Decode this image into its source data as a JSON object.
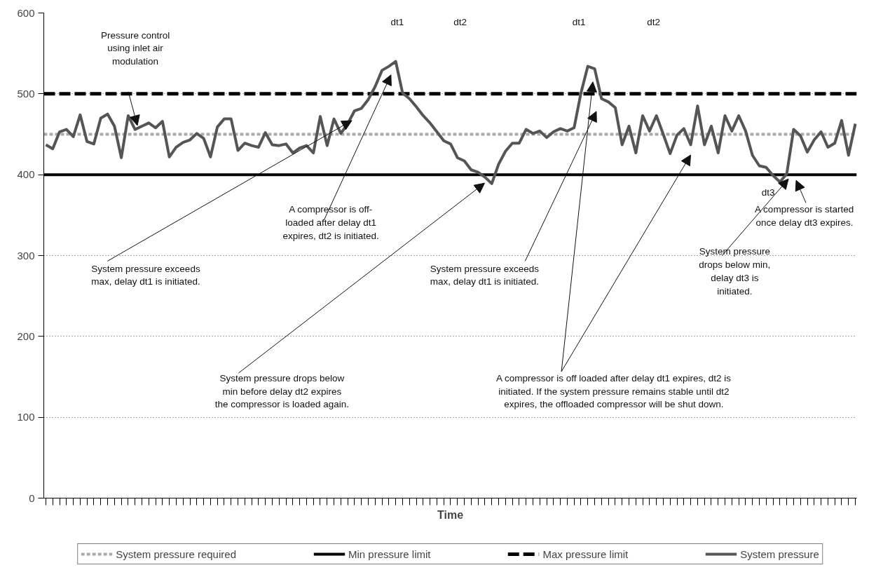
{
  "chart_data": {
    "type": "line",
    "xlabel": "Time",
    "categories": [
      null,
      null,
      null,
      null,
      null,
      null,
      null,
      null,
      null,
      null,
      null,
      null,
      null,
      null,
      null,
      null,
      null,
      null,
      null,
      null,
      null,
      null,
      null,
      null,
      null,
      null,
      null,
      null,
      null,
      null,
      null,
      null,
      null,
      null,
      null,
      null,
      null,
      null,
      null,
      null,
      null,
      null,
      null,
      null,
      null,
      null,
      null,
      null,
      null,
      null,
      null,
      null,
      null,
      null,
      null,
      null,
      null,
      null,
      null,
      null,
      null,
      null,
      null,
      null,
      null,
      null,
      null,
      null,
      null,
      null,
      null,
      null,
      null,
      null,
      null,
      null,
      null,
      null,
      null,
      null,
      null,
      null,
      null,
      null,
      null,
      null,
      null,
      null,
      null,
      null,
      null,
      null,
      null,
      null,
      null,
      null,
      null,
      null,
      null,
      null,
      null,
      null,
      null,
      null,
      null,
      null,
      null,
      null,
      null,
      null,
      null,
      null,
      null,
      null,
      null,
      null,
      null,
      null,
      null
    ],
    "series": [
      {
        "name": "System pressure",
        "color": "#555555",
        "values": [
          437,
          432,
          453,
          456,
          447,
          474,
          441,
          438,
          470,
          475,
          460,
          421,
          473,
          456,
          460,
          464,
          458,
          466,
          422,
          434,
          440,
          443,
          451,
          445,
          422,
          459,
          469,
          469,
          430,
          439,
          436,
          434,
          452,
          437,
          436,
          438,
          427,
          433,
          436,
          427,
          472,
          436,
          469,
          451,
          463,
          479,
          482,
          493,
          509,
          529,
          534,
          540,
          501,
          494,
          484,
          473,
          464,
          453,
          442,
          438,
          421,
          417,
          406,
          403,
          397,
          389,
          413,
          429,
          439,
          439,
          456,
          451,
          454,
          446,
          453,
          457,
          454,
          458,
          501,
          534,
          531,
          494,
          490,
          483,
          437,
          460,
          427,
          473,
          454,
          473,
          450,
          426,
          449,
          457,
          437,
          485,
          437,
          460,
          427,
          473,
          454,
          473,
          454,
          424,
          411,
          409,
          399,
          391,
          401,
          456,
          448,
          428,
          443,
          453,
          434,
          439,
          467,
          424,
          463
        ]
      }
    ],
    "ylim": [
      0,
      600
    ],
    "yticks": [
      0,
      100,
      200,
      300,
      400,
      500,
      600
    ],
    "grid": "y",
    "legend": "bottom",
    "tick_labels": "y",
    "marker": "none",
    "line_style": "solid",
    "ref_lines": [
      {
        "axis": "y",
        "value": 450,
        "label": "System pressure required",
        "color": "#aaaaaa",
        "line_style": "dotted"
      },
      {
        "axis": "y",
        "value": 400,
        "label": "Min pressure limit",
        "color": "#000000",
        "line_style": "solid"
      },
      {
        "axis": "y",
        "value": 500,
        "label": "Max pressure limit",
        "color": "#000000",
        "line_style": "dashed"
      }
    ],
    "annotations": [
      "Pressure control\nusing inlet air\nmodulation",
      "dt1",
      "dt2",
      "dt1",
      "dt2",
      "dt3",
      "A compressor is off-\nloaded after delay dt1\nexpires, dt2 is initiated.",
      "A compressor is started\nonce delay dt3 expires.",
      "System pressure exceeds\nmax, delay dt1 is initiated.",
      "System pressure exceeds\nmax, delay dt1 is initiated.",
      "System pressure\ndrops below min,\ndelay dt3 is\ninitiated.",
      "System pressure drops below\nmin before delay dt2 expires\nthe compressor is loaded again.",
      "A compressor is off loaded after delay dt1 expires, dt2 is\ninitiated. If the system pressure remains stable until dt2\nexpires, the offloaded compressor will be shut down."
    ]
  }
}
